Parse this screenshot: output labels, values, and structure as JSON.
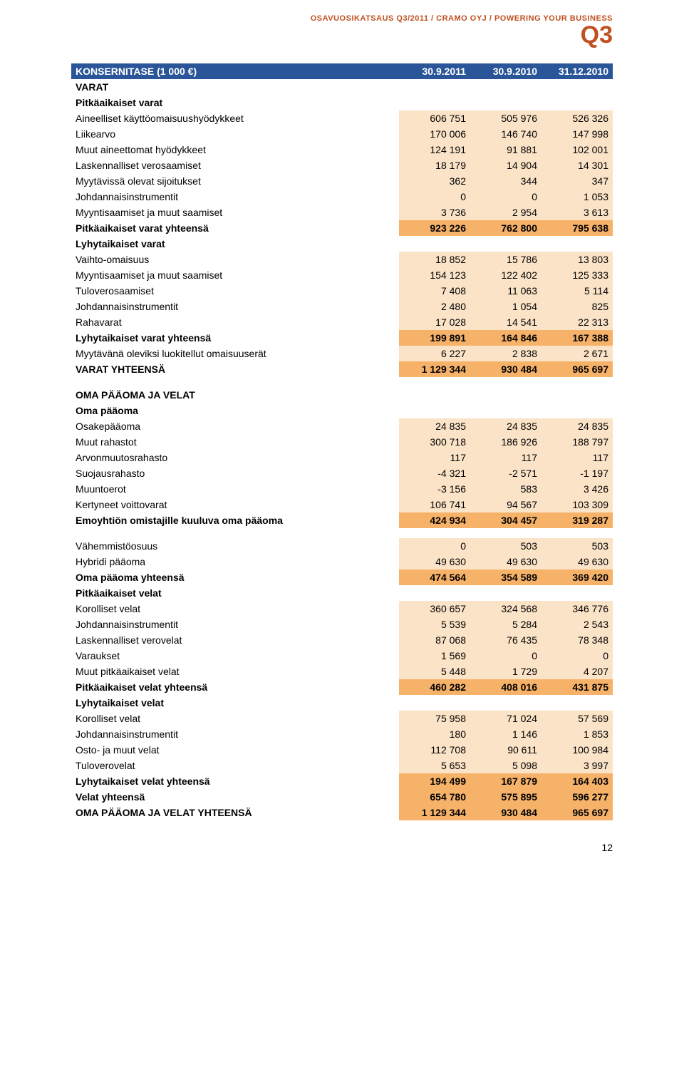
{
  "header": {
    "line": "OSAVUOSIKATSAUS Q3/2011 / CRAMO OYJ / POWERING YOUR BUSINESS",
    "q3": "Q3"
  },
  "colors": {
    "header_bg": "#2a5699",
    "header_fg": "#ffffff",
    "row_light": "#fbe3c7",
    "row_sum": "#f7b26a",
    "accent": "#c05020"
  },
  "columns": [
    "30.9.2011",
    "30.9.2010",
    "31.12.2010"
  ],
  "rows": [
    {
      "t": "hdr",
      "label": "KONSERNITASE (1 000 €)"
    },
    {
      "t": "section",
      "label": "VARAT"
    },
    {
      "t": "section",
      "label": "Pitkäaikaiset varat"
    },
    {
      "t": "sub",
      "label": "Aineelliset käyttöomaisuushyödykkeet",
      "v": [
        "606 751",
        "505 976",
        "526 326"
      ]
    },
    {
      "t": "sub",
      "label": "Liikearvo",
      "v": [
        "170 006",
        "146 740",
        "147 998"
      ]
    },
    {
      "t": "sub",
      "label": "Muut aineettomat hyödykkeet",
      "v": [
        "124 191",
        "91 881",
        "102 001"
      ]
    },
    {
      "t": "sub",
      "label": "Laskennalliset verosaamiset",
      "v": [
        "18 179",
        "14 904",
        "14 301"
      ]
    },
    {
      "t": "sub",
      "label": "Myytävissä olevat sijoitukset",
      "v": [
        "362",
        "344",
        "347"
      ]
    },
    {
      "t": "sub",
      "label": "Johdannaisinstrumentit",
      "v": [
        "0",
        "0",
        "1 053"
      ]
    },
    {
      "t": "sub",
      "label": "Myyntisaamiset ja muut saamiset",
      "v": [
        "3 736",
        "2 954",
        "3 613"
      ]
    },
    {
      "t": "sum",
      "label": "Pitkäaikaiset varat yhteensä",
      "v": [
        "923 226",
        "762 800",
        "795 638"
      ]
    },
    {
      "t": "section",
      "label": "Lyhytaikaiset varat"
    },
    {
      "t": "sub",
      "label": "Vaihto-omaisuus",
      "v": [
        "18 852",
        "15 786",
        "13 803"
      ]
    },
    {
      "t": "sub",
      "label": "Myyntisaamiset ja muut saamiset",
      "v": [
        "154 123",
        "122 402",
        "125 333"
      ]
    },
    {
      "t": "sub",
      "label": "Tuloverosaamiset",
      "v": [
        "7 408",
        "11 063",
        "5 114"
      ]
    },
    {
      "t": "sub",
      "label": "Johdannaisinstrumentit",
      "v": [
        "2 480",
        "1 054",
        "825"
      ]
    },
    {
      "t": "sub",
      "label": "Rahavarat",
      "v": [
        "17 028",
        "14 541",
        "22 313"
      ]
    },
    {
      "t": "sum",
      "label": "Lyhytaikaiset varat yhteensä",
      "v": [
        "199 891",
        "164 846",
        "167 388"
      ]
    },
    {
      "t": "sub",
      "label": "Myytävänä oleviksi luokitellut omaisuuserät",
      "v": [
        "6 227",
        "2 838",
        "2 671"
      ]
    },
    {
      "t": "sum",
      "label": "VARAT YHTEENSÄ",
      "v": [
        "1 129 344",
        "930 484",
        "965 697"
      ]
    },
    {
      "t": "spacer"
    },
    {
      "t": "section",
      "label": "OMA PÄÄOMA JA VELAT"
    },
    {
      "t": "section",
      "label": "Oma pääoma"
    },
    {
      "t": "sub",
      "label": "Osakepääoma",
      "v": [
        "24 835",
        "24 835",
        "24 835"
      ]
    },
    {
      "t": "sub",
      "label": "Muut rahastot",
      "v": [
        "300 718",
        "186 926",
        "188 797"
      ]
    },
    {
      "t": "sub",
      "label": "Arvonmuutosrahasto",
      "v": [
        "117",
        "117",
        "117"
      ]
    },
    {
      "t": "sub",
      "label": "Suojausrahasto",
      "v": [
        "-4 321",
        "-2 571",
        "-1 197"
      ]
    },
    {
      "t": "sub",
      "label": "Muuntoerot",
      "v": [
        "-3 156",
        "583",
        "3 426"
      ]
    },
    {
      "t": "sub",
      "label": "Kertyneet voittovarat",
      "v": [
        "106 741",
        "94 567",
        "103 309"
      ]
    },
    {
      "t": "sum",
      "label": "Emoyhtiön omistajille kuuluva oma pääoma",
      "v": [
        "424 934",
        "304 457",
        "319 287"
      ]
    },
    {
      "t": "spacer"
    },
    {
      "t": "sub",
      "label": "Vähemmistöosuus",
      "v": [
        "0",
        "503",
        "503"
      ]
    },
    {
      "t": "sub",
      "label": "Hybridi pääoma",
      "v": [
        "49 630",
        "49 630",
        "49 630"
      ]
    },
    {
      "t": "sum",
      "label": "Oma pääoma yhteensä",
      "v": [
        "474 564",
        "354 589",
        "369 420"
      ]
    },
    {
      "t": "section",
      "label": "Pitkäaikaiset velat"
    },
    {
      "t": "sub",
      "label": "Korolliset velat",
      "v": [
        "360 657",
        "324 568",
        "346 776"
      ]
    },
    {
      "t": "sub",
      "label": "Johdannaisinstrumentit",
      "v": [
        "5 539",
        "5 284",
        "2 543"
      ]
    },
    {
      "t": "sub",
      "label": "Laskennalliset verovelat",
      "v": [
        "87 068",
        "76 435",
        "78 348"
      ]
    },
    {
      "t": "sub",
      "label": "Varaukset",
      "v": [
        "1 569",
        "0",
        "0"
      ]
    },
    {
      "t": "sub",
      "label": "Muut pitkäaikaiset velat",
      "v": [
        "5 448",
        "1 729",
        "4 207"
      ]
    },
    {
      "t": "sum",
      "label": "Pitkäaikaiset velat yhteensä",
      "v": [
        "460 282",
        "408 016",
        "431 875"
      ]
    },
    {
      "t": "section",
      "label": "Lyhytaikaiset velat"
    },
    {
      "t": "sub",
      "label": "Korolliset velat",
      "v": [
        "75 958",
        "71 024",
        "57 569"
      ]
    },
    {
      "t": "sub",
      "label": "Johdannaisinstrumentit",
      "v": [
        "180",
        "1 146",
        "1 853"
      ]
    },
    {
      "t": "sub",
      "label": "Osto- ja muut velat",
      "v": [
        "112 708",
        "90 611",
        "100 984"
      ]
    },
    {
      "t": "sub",
      "label": "Tuloverovelat",
      "v": [
        "5 653",
        "5 098",
        "3 997"
      ]
    },
    {
      "t": "sum",
      "label": "Lyhytaikaiset velat yhteensä",
      "v": [
        "194 499",
        "167 879",
        "164 403"
      ]
    },
    {
      "t": "sum",
      "label": "Velat yhteensä",
      "v": [
        "654 780",
        "575 895",
        "596 277"
      ]
    },
    {
      "t": "sum",
      "label": "OMA PÄÄOMA JA VELAT YHTEENSÄ",
      "v": [
        "1 129 344",
        "930 484",
        "965 697"
      ]
    }
  ],
  "pagenum": "12"
}
